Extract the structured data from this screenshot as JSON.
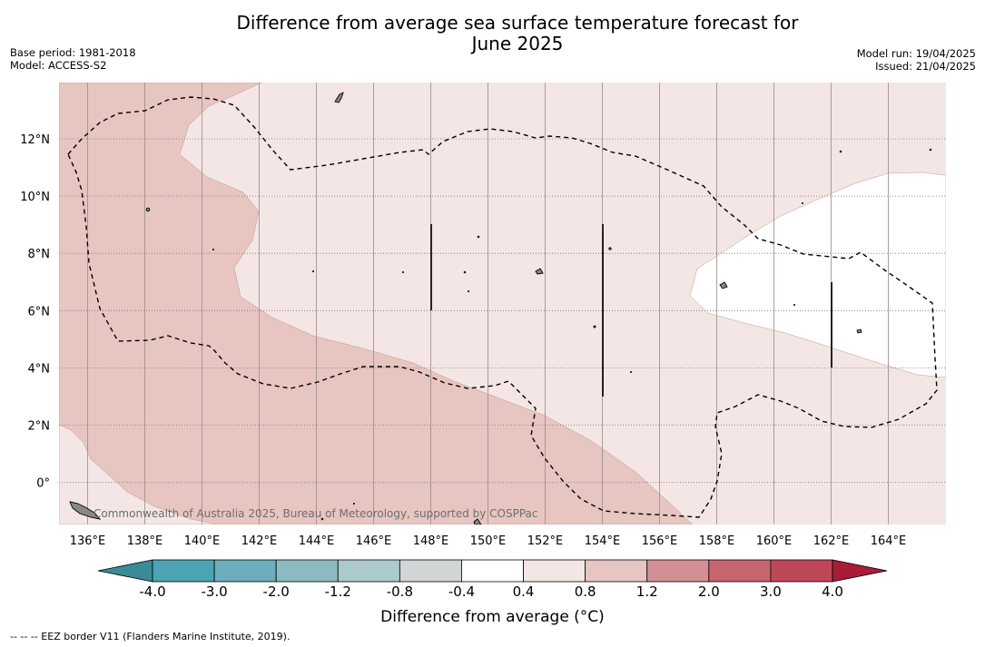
{
  "title": {
    "line1": "Difference from average sea surface temperature forecast for",
    "line2": "June 2025"
  },
  "meta_left": {
    "base_period": "Base period: 1981-2018",
    "model": "Model: ACCESS-S2"
  },
  "meta_right": {
    "model_run": "Model run: 19/04/2025",
    "issued": "Issued: 21/04/2025"
  },
  "map": {
    "lon_labels": [
      "136°E",
      "138°E",
      "140°E",
      "142°E",
      "144°E",
      "146°E",
      "148°E",
      "150°E",
      "152°E",
      "154°E",
      "156°E",
      "158°E",
      "160°E",
      "162°E",
      "164°E"
    ],
    "lat_labels": [
      "12°N",
      "10°N",
      "8°N",
      "6°N",
      "4°N",
      "2°N",
      "0°"
    ],
    "credit": "Commonwealth of Australia 2025, Bureau of Meteorology, supported by COSPPac",
    "fill_colors": {
      "0.4_to_0.8": "#f4e6e4",
      "0.8_to_1.2": "#e7c5c1",
      "-0.4_to_0.4": "#ffffff"
    }
  },
  "colorbar": {
    "colors": [
      "#3a8b98",
      "#4ba3b3",
      "#6caebb",
      "#8bbac3",
      "#acc9cb",
      "#d1d5d5",
      "#ffffff",
      "#f4e6e4",
      "#e7c5c1",
      "#d48f95",
      "#c8646e",
      "#bf4858",
      "#a81c37"
    ],
    "tick_labels": [
      "-4.0",
      "-3.0",
      "-2.0",
      "-1.2",
      "-0.8",
      "-0.4",
      "0.4",
      "0.8",
      "1.2",
      "2.0",
      "3.0",
      "4.0"
    ],
    "label": "Difference from average (°C)"
  },
  "footnote": "--  --  -- EEZ border V11 (Flanders Marine Institute, 2019)."
}
